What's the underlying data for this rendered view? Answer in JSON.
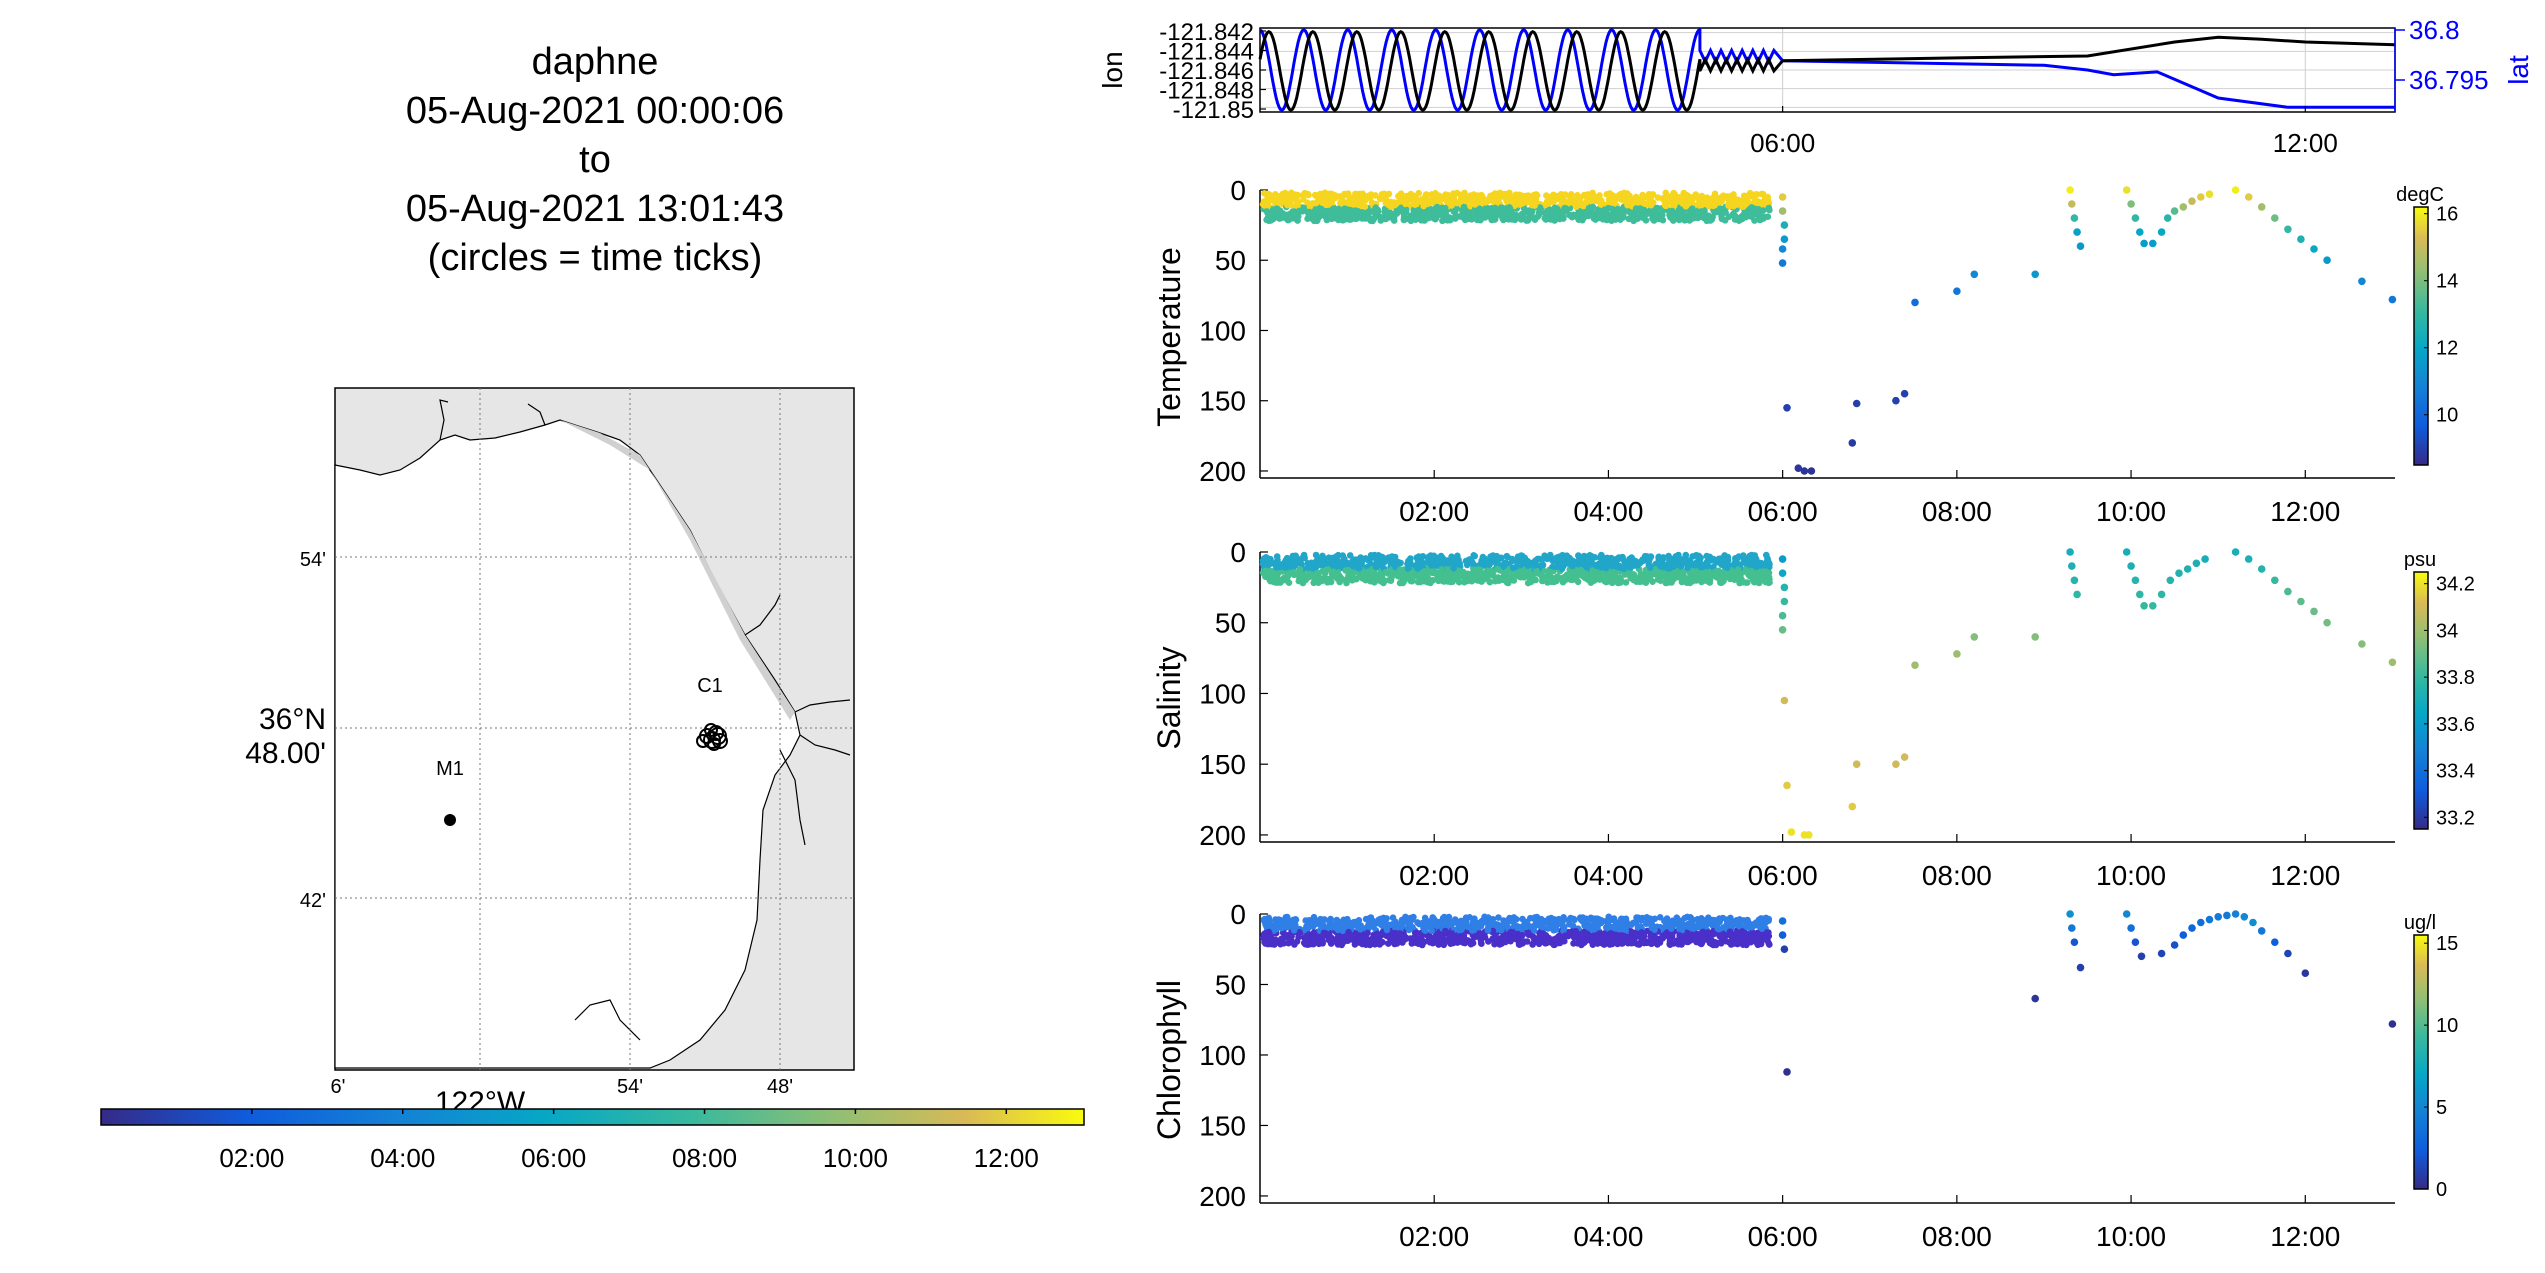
{
  "title": {
    "vehicle": "daphne",
    "start": "05-Aug-2021 00:00:06",
    "to": "to",
    "end": "05-Aug-2021 13:01:43",
    "note": "(circles = time ticks)"
  },
  "map": {
    "lat_ticks": [
      "54'",
      "48.00'",
      "42'"
    ],
    "lat_degree_label": "36°N",
    "lon_ticks": [
      "6'",
      "54'",
      "48'"
    ],
    "lon_degree_label": "122°W",
    "stations": [
      {
        "name": "M1",
        "lat": 36.747,
        "lon": -122.022
      },
      {
        "name": "C1",
        "lat": 36.797,
        "lon": -121.847
      }
    ],
    "time_colorbar_ticks": [
      "02:00",
      "04:00",
      "06:00",
      "08:00",
      "10:00",
      "12:00"
    ],
    "colors": {
      "land": "#e6e6e6",
      "water": "#ffffff",
      "grid": "#777777"
    }
  },
  "chart_data": [
    {
      "type": "line",
      "panel": "position",
      "ylabel_left": "lon",
      "ylabel_right": "lat",
      "left_ticks": [
        "-121.842",
        "-121.844",
        "-121.846",
        "-121.848",
        "-121.85"
      ],
      "right_ticks": [
        "36.8",
        "36.795"
      ],
      "x_ticks": [
        "06:00",
        "12:00"
      ],
      "xlim_hours": [
        0,
        13.03
      ],
      "left_ylim": [
        -121.8505,
        -121.8415
      ],
      "right_ylim": [
        36.7915,
        36.8005
      ],
      "series": [
        {
          "name": "lon",
          "color": "#000000",
          "x": [
            0.0,
            5.0,
            5.0,
            5.9,
            6.0,
            8.0,
            9.5,
            10.5,
            11.0,
            11.5,
            12.0,
            13.03
          ],
          "y": [
            -121.846,
            -121.846,
            -121.8455,
            -121.8455,
            -121.845,
            -121.8447,
            -121.8445,
            -121.843,
            -121.8425,
            -121.8427,
            -121.843,
            -121.8433
          ]
        },
        {
          "name": "lat",
          "color": "#0000ff",
          "x": [
            0.0,
            5.0,
            5.0,
            5.9,
            6.0,
            9.0,
            9.5,
            9.8,
            10.3,
            11.0,
            11.8,
            13.03
          ],
          "y": [
            36.798,
            36.798,
            36.7975,
            36.7975,
            36.797,
            36.7965,
            36.796,
            36.7955,
            36.7958,
            36.793,
            36.792,
            36.792
          ]
        }
      ],
      "oscillation": {
        "cycles": 10,
        "until_hours": 5.05,
        "lon_range": [
          -121.8503,
          -121.8419
        ],
        "lat_range": [
          36.7917,
          36.8003
        ]
      }
    },
    {
      "type": "scatter",
      "panel": "Temperature",
      "ylabel": "Temperature",
      "colorbar_label": "degC",
      "colorbar_ticks": [
        "16",
        "14",
        "12",
        "10"
      ],
      "colorbar_range": [
        8.5,
        16.2
      ],
      "x_ticks": [
        "02:00",
        "04:00",
        "06:00",
        "08:00",
        "10:00",
        "12:00"
      ],
      "y_ticks": [
        "0",
        "50",
        "100",
        "150",
        "200"
      ],
      "ylim": [
        0,
        205
      ],
      "reversed_y": true,
      "dense_block": {
        "x_range_hours": [
          0,
          5.85
        ],
        "depth_range": [
          2,
          22
        ],
        "color_near_surface": "#f5d51f",
        "color_deep": "#3fbc9a"
      },
      "points": [
        {
          "x": 6.0,
          "y": 5,
          "c": 15.5
        },
        {
          "x": 6.0,
          "y": 15,
          "c": 14.5
        },
        {
          "x": 6.02,
          "y": 25,
          "c": 12.5
        },
        {
          "x": 6.02,
          "y": 35,
          "c": 11.5
        },
        {
          "x": 6.0,
          "y": 42,
          "c": 11.0
        },
        {
          "x": 6.0,
          "y": 52,
          "c": 10.5
        },
        {
          "x": 6.05,
          "y": 155,
          "c": 9.0
        },
        {
          "x": 6.18,
          "y": 198,
          "c": 8.8
        },
        {
          "x": 6.33,
          "y": 200,
          "c": 8.7
        },
        {
          "x": 6.25,
          "y": 200,
          "c": 8.7
        },
        {
          "x": 6.85,
          "y": 152,
          "c": 9.0
        },
        {
          "x": 6.8,
          "y": 180,
          "c": 8.9
        },
        {
          "x": 7.3,
          "y": 150,
          "c": 9.0
        },
        {
          "x": 7.4,
          "y": 145,
          "c": 9.0
        },
        {
          "x": 7.52,
          "y": 80,
          "c": 10.2
        },
        {
          "x": 8.0,
          "y": 72,
          "c": 10.5
        },
        {
          "x": 8.2,
          "y": 60,
          "c": 11.0
        },
        {
          "x": 8.9,
          "y": 60,
          "c": 11.5
        },
        {
          "x": 9.3,
          "y": 0,
          "c": 16.0
        },
        {
          "x": 9.32,
          "y": 10,
          "c": 15.0
        },
        {
          "x": 9.35,
          "y": 20,
          "c": 13.0
        },
        {
          "x": 9.38,
          "y": 30,
          "c": 11.8
        },
        {
          "x": 9.42,
          "y": 40,
          "c": 11.5
        },
        {
          "x": 9.95,
          "y": 0,
          "c": 15.8
        },
        {
          "x": 10.0,
          "y": 10,
          "c": 14.0
        },
        {
          "x": 10.05,
          "y": 20,
          "c": 13.0
        },
        {
          "x": 10.1,
          "y": 30,
          "c": 12.0
        },
        {
          "x": 10.15,
          "y": 38,
          "c": 11.7
        },
        {
          "x": 10.25,
          "y": 38,
          "c": 11.7
        },
        {
          "x": 10.35,
          "y": 30,
          "c": 12.0
        },
        {
          "x": 10.42,
          "y": 20,
          "c": 12.8
        },
        {
          "x": 10.5,
          "y": 15,
          "c": 13.5
        },
        {
          "x": 10.6,
          "y": 12,
          "c": 14.5
        },
        {
          "x": 10.7,
          "y": 8,
          "c": 15.0
        },
        {
          "x": 10.8,
          "y": 5,
          "c": 15.5
        },
        {
          "x": 10.9,
          "y": 3,
          "c": 15.8
        },
        {
          "x": 11.2,
          "y": 0,
          "c": 16.0
        },
        {
          "x": 11.35,
          "y": 5,
          "c": 15.5
        },
        {
          "x": 11.5,
          "y": 12,
          "c": 14.5
        },
        {
          "x": 11.65,
          "y": 20,
          "c": 13.8
        },
        {
          "x": 11.8,
          "y": 28,
          "c": 13.0
        },
        {
          "x": 11.95,
          "y": 35,
          "c": 12.5
        },
        {
          "x": 12.1,
          "y": 42,
          "c": 12.0
        },
        {
          "x": 12.25,
          "y": 50,
          "c": 11.5
        },
        {
          "x": 12.65,
          "y": 65,
          "c": 11.0
        },
        {
          "x": 13.0,
          "y": 78,
          "c": 10.5
        }
      ]
    },
    {
      "type": "scatter",
      "panel": "Salinity",
      "ylabel": "Salinity",
      "colorbar_label": "psu",
      "colorbar_ticks": [
        "34.2",
        "34",
        "33.8",
        "33.6",
        "33.4",
        "33.2"
      ],
      "colorbar_range": [
        33.15,
        34.25
      ],
      "x_ticks": [
        "02:00",
        "04:00",
        "06:00",
        "08:00",
        "10:00",
        "12:00"
      ],
      "y_ticks": [
        "0",
        "50",
        "100",
        "150",
        "200"
      ],
      "ylim": [
        0,
        205
      ],
      "reversed_y": true,
      "dense_block": {
        "x_range_hours": [
          0,
          5.85
        ],
        "depth_range": [
          2,
          22
        ],
        "color_near_surface": "#21a6c9",
        "color_deep": "#44bf90"
      },
      "points": [
        {
          "x": 6.0,
          "y": 5,
          "c": 33.6
        },
        {
          "x": 6.0,
          "y": 15,
          "c": 33.65
        },
        {
          "x": 6.02,
          "y": 25,
          "c": 33.75
        },
        {
          "x": 6.02,
          "y": 35,
          "c": 33.8
        },
        {
          "x": 6.0,
          "y": 45,
          "c": 33.85
        },
        {
          "x": 6.0,
          "y": 55,
          "c": 33.9
        },
        {
          "x": 6.02,
          "y": 105,
          "c": 34.1
        },
        {
          "x": 6.05,
          "y": 165,
          "c": 34.15
        },
        {
          "x": 6.1,
          "y": 198,
          "c": 34.2
        },
        {
          "x": 6.25,
          "y": 200,
          "c": 34.2
        },
        {
          "x": 6.3,
          "y": 200,
          "c": 34.2
        },
        {
          "x": 6.8,
          "y": 180,
          "c": 34.15
        },
        {
          "x": 6.85,
          "y": 150,
          "c": 34.1
        },
        {
          "x": 7.3,
          "y": 150,
          "c": 34.1
        },
        {
          "x": 7.4,
          "y": 145,
          "c": 34.1
        },
        {
          "x": 7.52,
          "y": 80,
          "c": 34.0
        },
        {
          "x": 8.0,
          "y": 72,
          "c": 34.0
        },
        {
          "x": 8.2,
          "y": 60,
          "c": 33.95
        },
        {
          "x": 8.9,
          "y": 60,
          "c": 33.95
        },
        {
          "x": 9.3,
          "y": 0,
          "c": 33.7
        },
        {
          "x": 9.32,
          "y": 10,
          "c": 33.72
        },
        {
          "x": 9.35,
          "y": 20,
          "c": 33.75
        },
        {
          "x": 9.38,
          "y": 30,
          "c": 33.78
        },
        {
          "x": 9.95,
          "y": 0,
          "c": 33.7
        },
        {
          "x": 10.0,
          "y": 10,
          "c": 33.72
        },
        {
          "x": 10.05,
          "y": 20,
          "c": 33.75
        },
        {
          "x": 10.1,
          "y": 30,
          "c": 33.78
        },
        {
          "x": 10.15,
          "y": 38,
          "c": 33.8
        },
        {
          "x": 10.25,
          "y": 38,
          "c": 33.8
        },
        {
          "x": 10.35,
          "y": 30,
          "c": 33.78
        },
        {
          "x": 10.45,
          "y": 20,
          "c": 33.75
        },
        {
          "x": 10.55,
          "y": 15,
          "c": 33.74
        },
        {
          "x": 10.65,
          "y": 12,
          "c": 33.72
        },
        {
          "x": 10.75,
          "y": 8,
          "c": 33.72
        },
        {
          "x": 10.85,
          "y": 5,
          "c": 33.7
        },
        {
          "x": 11.2,
          "y": 0,
          "c": 33.7
        },
        {
          "x": 11.35,
          "y": 5,
          "c": 33.72
        },
        {
          "x": 11.5,
          "y": 12,
          "c": 33.75
        },
        {
          "x": 11.65,
          "y": 20,
          "c": 33.8
        },
        {
          "x": 11.8,
          "y": 28,
          "c": 33.85
        },
        {
          "x": 11.95,
          "y": 35,
          "c": 33.88
        },
        {
          "x": 12.1,
          "y": 42,
          "c": 33.9
        },
        {
          "x": 12.25,
          "y": 50,
          "c": 33.92
        },
        {
          "x": 12.65,
          "y": 65,
          "c": 33.95
        },
        {
          "x": 13.0,
          "y": 78,
          "c": 34.0
        }
      ]
    },
    {
      "type": "scatter",
      "panel": "Chlorophyll",
      "ylabel": "Chlorophyll",
      "colorbar_label": "ug/l",
      "colorbar_ticks": [
        "15",
        "10",
        "5",
        "0"
      ],
      "colorbar_range": [
        0,
        15.5
      ],
      "x_ticks": [
        "02:00",
        "04:00",
        "06:00",
        "08:00",
        "10:00",
        "12:00"
      ],
      "y_ticks": [
        "0",
        "50",
        "100",
        "150",
        "200"
      ],
      "ylim": [
        0,
        205
      ],
      "reversed_y": true,
      "dense_block": {
        "x_range_hours": [
          0,
          5.85
        ],
        "depth_range": [
          2,
          22
        ],
        "color_near_surface": "#2f7fe6",
        "color_deep": "#4a2fc9"
      },
      "points": [
        {
          "x": 6.0,
          "y": 5,
          "c": 3.5
        },
        {
          "x": 6.0,
          "y": 15,
          "c": 2.5
        },
        {
          "x": 6.02,
          "y": 25,
          "c": 1.0
        },
        {
          "x": 6.05,
          "y": 112,
          "c": 0.3
        },
        {
          "x": 8.9,
          "y": 60,
          "c": 0.5
        },
        {
          "x": 9.3,
          "y": 0,
          "c": 5.5
        },
        {
          "x": 9.32,
          "y": 10,
          "c": 4.0
        },
        {
          "x": 9.35,
          "y": 20,
          "c": 2.0
        },
        {
          "x": 9.42,
          "y": 38,
          "c": 1.0
        },
        {
          "x": 9.95,
          "y": 0,
          "c": 5.0
        },
        {
          "x": 10.0,
          "y": 10,
          "c": 3.5
        },
        {
          "x": 10.05,
          "y": 20,
          "c": 2.0
        },
        {
          "x": 10.12,
          "y": 30,
          "c": 1.0
        },
        {
          "x": 10.35,
          "y": 28,
          "c": 1.2
        },
        {
          "x": 10.5,
          "y": 22,
          "c": 1.8
        },
        {
          "x": 10.6,
          "y": 15,
          "c": 2.5
        },
        {
          "x": 10.7,
          "y": 10,
          "c": 3.0
        },
        {
          "x": 10.8,
          "y": 6,
          "c": 3.5
        },
        {
          "x": 10.9,
          "y": 4,
          "c": 4.0
        },
        {
          "x": 11.0,
          "y": 2,
          "c": 4.2
        },
        {
          "x": 11.1,
          "y": 1,
          "c": 4.2
        },
        {
          "x": 11.2,
          "y": 0,
          "c": 4.5
        },
        {
          "x": 11.3,
          "y": 2,
          "c": 5.0
        },
        {
          "x": 11.4,
          "y": 6,
          "c": 5.5
        },
        {
          "x": 11.5,
          "y": 12,
          "c": 4.0
        },
        {
          "x": 11.65,
          "y": 20,
          "c": 2.5
        },
        {
          "x": 11.8,
          "y": 28,
          "c": 1.2
        },
        {
          "x": 12.0,
          "y": 42,
          "c": 0.6
        },
        {
          "x": 13.0,
          "y": 78,
          "c": 0.3
        }
      ]
    }
  ]
}
